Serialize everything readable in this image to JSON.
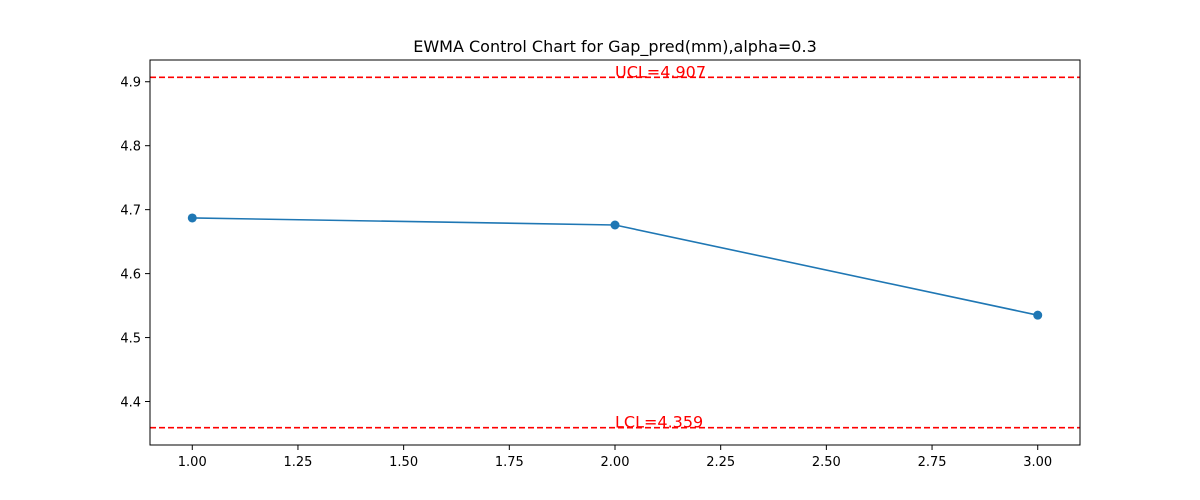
{
  "chart_data": {
    "type": "line",
    "title": "EWMA Control Chart for Gap_pred(mm),alpha=0.3",
    "xlabel": "",
    "ylabel": "",
    "xlim": [
      0.9,
      3.1
    ],
    "ylim": [
      4.332,
      4.934
    ],
    "x_ticks": [
      1.0,
      1.25,
      1.5,
      1.75,
      2.0,
      2.25,
      2.5,
      2.75,
      3.0
    ],
    "x_tick_labels": [
      "1.00",
      "1.25",
      "1.50",
      "1.75",
      "2.00",
      "2.25",
      "2.50",
      "2.75",
      "3.00"
    ],
    "y_ticks": [
      4.4,
      4.5,
      4.6,
      4.7,
      4.8,
      4.9
    ],
    "y_tick_labels": [
      "4.4",
      "4.5",
      "4.6",
      "4.7",
      "4.8",
      "4.9"
    ],
    "grid": false,
    "series": [
      {
        "x": [
          1.0,
          2.0,
          3.0
        ],
        "values": [
          4.687,
          4.676,
          4.535
        ],
        "color": "#1f77b4"
      }
    ],
    "control_limits": [
      {
        "label": "UCL=4.907",
        "value": 4.907,
        "color": "#ff0000",
        "label_x": 2.0
      },
      {
        "label": "LCL=4.359",
        "value": 4.359,
        "color": "#ff0000",
        "label_x": 2.0
      }
    ]
  }
}
